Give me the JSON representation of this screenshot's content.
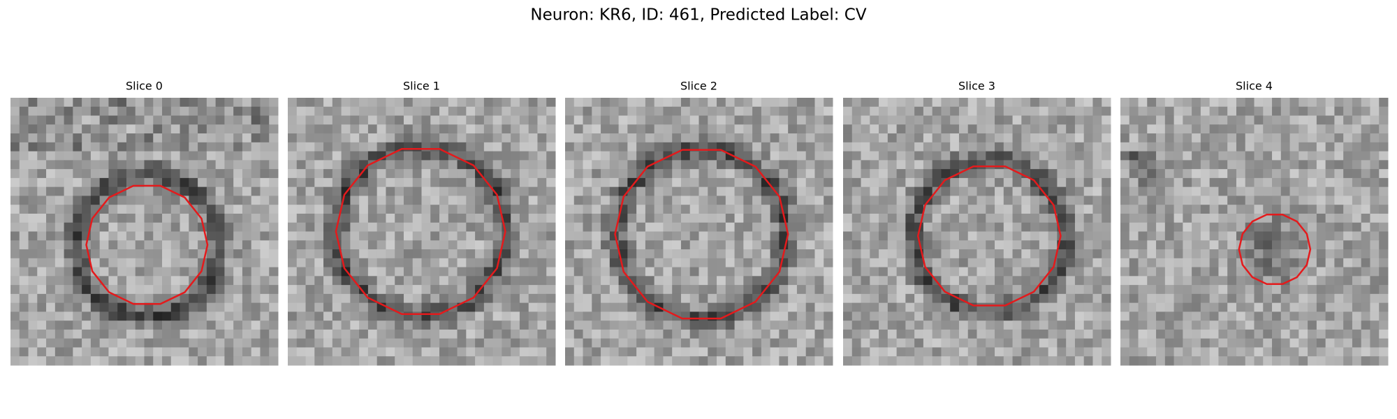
{
  "header": {
    "title": "Neuron: KR6, ID: 461, Predicted Label: CV"
  },
  "panels": [
    {
      "title": "Slice 0"
    },
    {
      "title": "Slice 1"
    },
    {
      "title": "Slice 2"
    },
    {
      "title": "Slice 3"
    },
    {
      "title": "Slice 4"
    }
  ]
}
